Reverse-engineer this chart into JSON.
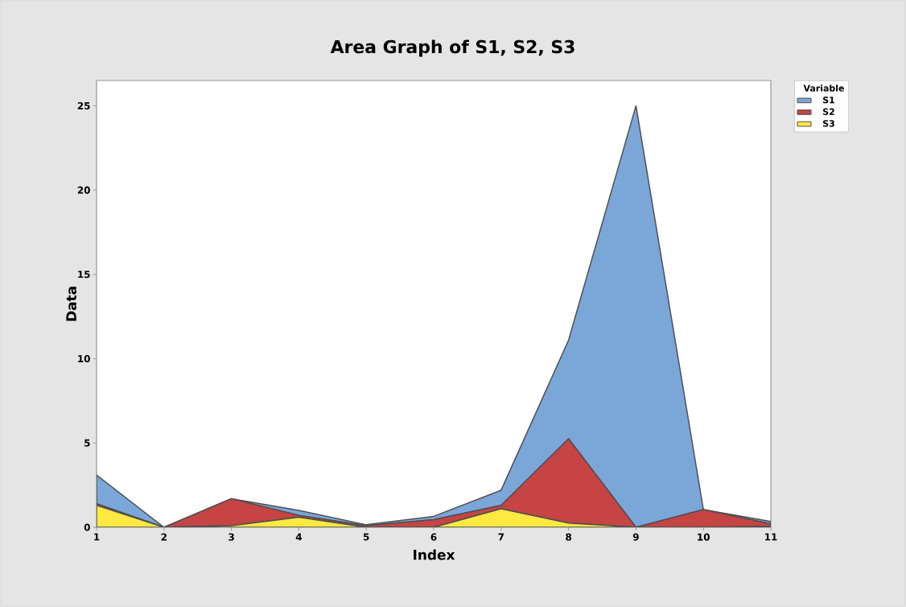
{
  "chart_data": {
    "type": "area",
    "stacked": true,
    "title": "Area Graph of S1, S2, S3",
    "xlabel": "Index",
    "ylabel": "Data",
    "legend_title": "Variable",
    "legend": "top right",
    "x": [
      1,
      2,
      3,
      4,
      5,
      6,
      7,
      8,
      9,
      10,
      11
    ],
    "xlim": [
      1,
      11
    ],
    "ylim": [
      0,
      26.5
    ],
    "xticks": [
      1,
      2,
      3,
      4,
      5,
      6,
      7,
      8,
      9,
      10,
      11
    ],
    "yticks": [
      0,
      5,
      10,
      15,
      20,
      25
    ],
    "series": [
      {
        "name": "S3",
        "color": "#ffe840",
        "values": [
          1.3,
          0,
          0.1,
          0.6,
          0,
          0,
          1.1,
          0.25,
          0,
          0,
          0.05
        ]
      },
      {
        "name": "S2",
        "color": "#c64444",
        "values": [
          0.1,
          0,
          1.6,
          0.1,
          0.1,
          0.45,
          0.2,
          5.0,
          0,
          1.05,
          0.15
        ]
      },
      {
        "name": "S1",
        "color": "#7ba6d8",
        "values": [
          1.7,
          0,
          0,
          0.3,
          0.05,
          0.2,
          0.9,
          5.85,
          25,
          0,
          0.15
        ]
      }
    ]
  }
}
